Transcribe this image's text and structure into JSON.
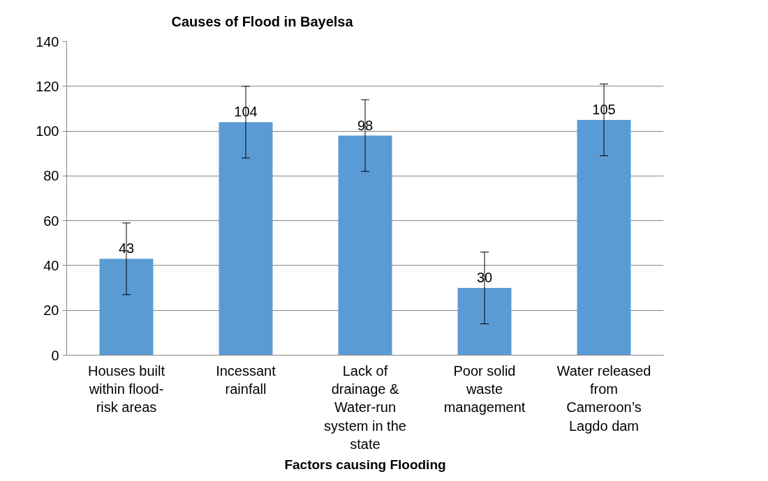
{
  "chart_data": {
    "type": "bar",
    "title": "Causes of Flood in Bayelsa",
    "xlabel": "Factors causing Flooding",
    "categories": [
      "Houses built within flood-risk areas",
      "Incessant rainfall",
      "Lack of drainage & Water-run system in the state",
      "Poor solid waste management",
      "Water released from Cameroon’s Lagdo dam"
    ],
    "values": [
      43,
      104,
      98,
      30,
      105
    ],
    "errors": [
      16,
      16,
      16,
      16,
      16
    ],
    "color": "#5b9bd5",
    "ylim": [
      0,
      140
    ],
    "yticks": [
      0,
      20,
      40,
      60,
      80,
      100,
      120,
      140
    ],
    "grid": "y",
    "data_labels": true
  }
}
